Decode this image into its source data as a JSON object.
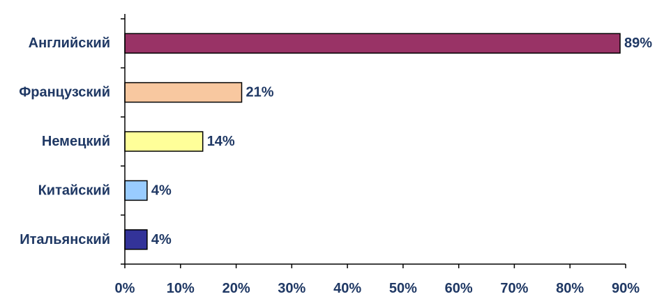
{
  "chart_data": {
    "type": "bar",
    "orientation": "horizontal",
    "title": "",
    "xlabel": "",
    "ylabel": "",
    "categories": [
      "Английский",
      "Французский",
      "Немецкий",
      "Китайский",
      "Итальянский"
    ],
    "values": [
      89,
      21,
      14,
      4,
      4
    ],
    "data_labels": [
      "89%",
      "21%",
      "14%",
      "4%",
      "4%"
    ],
    "bar_colors": [
      "#993366",
      "#f8c8a0",
      "#ffff99",
      "#99ccff",
      "#333399"
    ],
    "xlim": [
      0,
      90
    ],
    "x_ticks": [
      0,
      10,
      20,
      30,
      40,
      50,
      60,
      70,
      80,
      90
    ],
    "x_tick_labels": [
      "0%",
      "10%",
      "20%",
      "30%",
      "40%",
      "50%",
      "60%",
      "70%",
      "80%",
      "90%"
    ],
    "grid": false,
    "legend": "none"
  }
}
